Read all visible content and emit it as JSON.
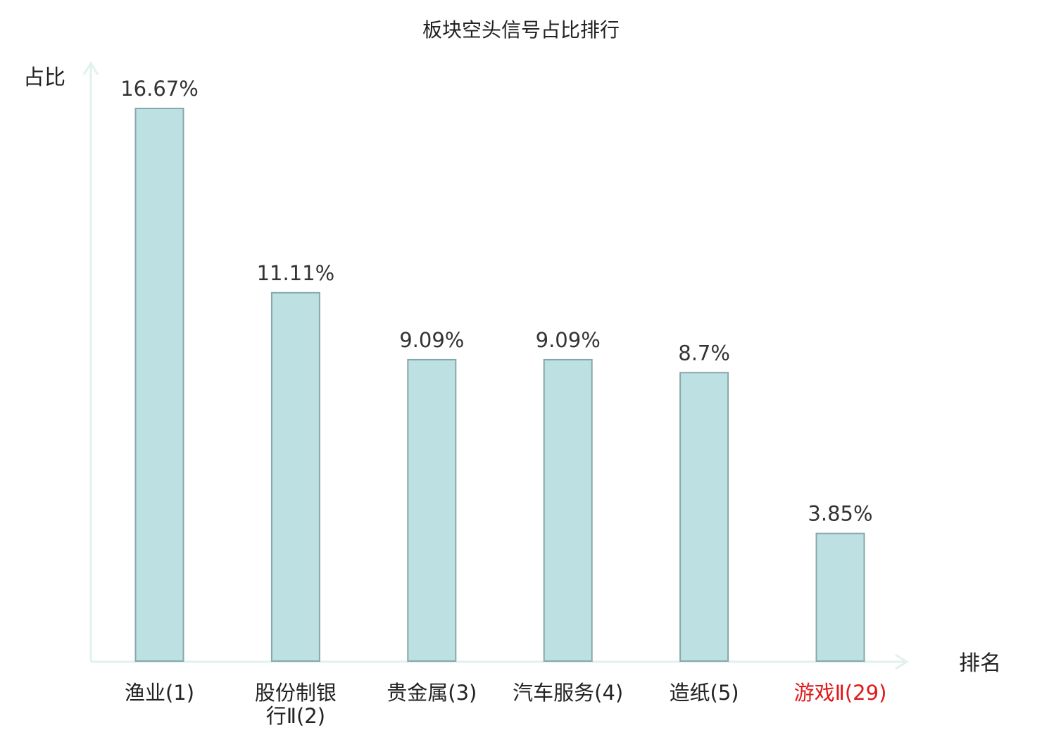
{
  "chart_data": {
    "type": "bar",
    "title": "板块空头信号占比排行",
    "ylabel": "占比",
    "xlabel": "排名",
    "categories": [
      {
        "lines": [
          "渔业(1)"
        ],
        "highlight": false
      },
      {
        "lines": [
          "股份制银",
          "行Ⅱ(2)"
        ],
        "highlight": false
      },
      {
        "lines": [
          "贵金属(3)"
        ],
        "highlight": false
      },
      {
        "lines": [
          "汽车服务(4)"
        ],
        "highlight": false
      },
      {
        "lines": [
          "造纸(5)"
        ],
        "highlight": false
      },
      {
        "lines": [
          "游戏Ⅱ(29)"
        ],
        "highlight": true
      }
    ],
    "values": [
      16.67,
      11.11,
      9.09,
      9.09,
      8.7,
      3.85
    ],
    "value_labels": [
      "16.67%",
      "11.11%",
      "9.09%",
      "9.09%",
      "8.7%",
      "3.85%"
    ],
    "ylim": [
      0,
      17.5
    ],
    "grid": false,
    "legend": "none",
    "colors": {
      "bar_fill": "#bde0e2",
      "bar_stroke": "#86a8aa",
      "axis": "#e0f1ee",
      "text": "#222222",
      "value_text": "#333333",
      "highlight_text": "#e0191b"
    }
  }
}
